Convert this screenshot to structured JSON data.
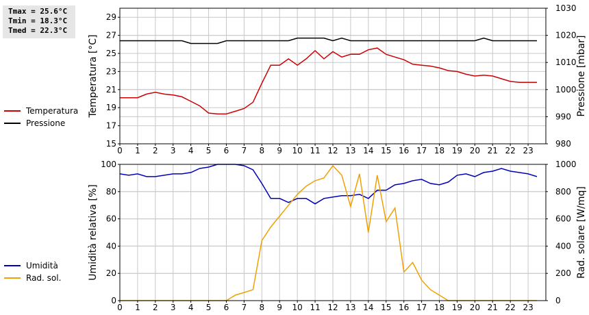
{
  "stats": {
    "tmax": "Tmax = 25.6°C",
    "tmin": "Tmin = 18.3°C",
    "tmed": "Tmed = 22.3°C"
  },
  "colors": {
    "temperatura": "#cc0000",
    "pressione": "#000000",
    "umidita": "#0000bb",
    "rad_sol": "#f0a000",
    "grid": "#c8c8c8"
  },
  "chart_data": [
    {
      "type": "line",
      "ylabel": "Temperatura [°C]",
      "y2label": "Pressione [mbar]",
      "xlim": [
        0,
        24
      ],
      "xticks": [
        0,
        1,
        2,
        3,
        4,
        5,
        6,
        7,
        8,
        9,
        10,
        11,
        12,
        13,
        14,
        15,
        16,
        17,
        18,
        19,
        20,
        21,
        22,
        23
      ],
      "ylim": [
        15,
        30
      ],
      "yticks": [
        15,
        17,
        19,
        21,
        23,
        25,
        27,
        29
      ],
      "y2lim": [
        980,
        1030
      ],
      "y2ticks": [
        980,
        990,
        1000,
        1010,
        1020,
        1030
      ],
      "grid": true,
      "legend": "left",
      "series": [
        {
          "name": "Temperatura",
          "axis": "left",
          "x": [
            0,
            0.5,
            1,
            1.5,
            2,
            2.5,
            3,
            3.5,
            4,
            4.5,
            5,
            5.5,
            6,
            6.5,
            7,
            7.5,
            8,
            8.5,
            9,
            9.5,
            10,
            10.5,
            11,
            11.5,
            12,
            12.5,
            13,
            13.5,
            14,
            14.5,
            15,
            15.5,
            16,
            16.5,
            17,
            17.5,
            18,
            18.5,
            19,
            19.5,
            20,
            20.5,
            21,
            21.5,
            22,
            22.5,
            23,
            23.5
          ],
          "values": [
            20.1,
            20.1,
            20.1,
            20.5,
            20.7,
            20.5,
            20.4,
            20.2,
            19.7,
            19.2,
            18.4,
            18.3,
            18.3,
            18.6,
            18.9,
            19.6,
            21.7,
            23.7,
            23.7,
            24.4,
            23.7,
            24.4,
            25.3,
            24.4,
            25.2,
            24.6,
            24.9,
            24.9,
            25.4,
            25.6,
            24.9,
            24.6,
            24.3,
            23.8,
            23.7,
            23.6,
            23.4,
            23.1,
            23.0,
            22.7,
            22.5,
            22.6,
            22.5,
            22.2,
            21.9,
            21.8,
            21.8,
            21.8
          ]
        },
        {
          "name": "Pressione",
          "axis": "right",
          "x": [
            0,
            0.5,
            1,
            1.5,
            2,
            2.5,
            3,
            3.5,
            4,
            4.5,
            5,
            5.5,
            6,
            6.5,
            7,
            7.5,
            8,
            8.5,
            9,
            9.5,
            10,
            10.5,
            11,
            11.5,
            12,
            12.5,
            13,
            13.5,
            14,
            14.5,
            15,
            15.5,
            16,
            16.5,
            17,
            17.5,
            18,
            18.5,
            19,
            19.5,
            20,
            20.5,
            21,
            21.5,
            22,
            22.5,
            23,
            23.5
          ],
          "values": [
            1018,
            1018,
            1018,
            1018,
            1018,
            1018,
            1018,
            1018,
            1017,
            1017,
            1017,
            1017,
            1018,
            1018,
            1018,
            1018,
            1018,
            1018,
            1018,
            1018,
            1019,
            1019,
            1019,
            1019,
            1018,
            1019,
            1018,
            1018,
            1018,
            1018,
            1018,
            1018,
            1018,
            1018,
            1018,
            1018,
            1018,
            1018,
            1018,
            1018,
            1018,
            1019,
            1018,
            1018,
            1018,
            1018,
            1018,
            1018
          ]
        }
      ]
    },
    {
      "type": "line",
      "ylabel": "Umidità relativa [%]",
      "y2label": "Rad. solare [W/mq]",
      "xlim": [
        0,
        24
      ],
      "xticks": [
        0,
        1,
        2,
        3,
        4,
        5,
        6,
        7,
        8,
        9,
        10,
        11,
        12,
        13,
        14,
        15,
        16,
        17,
        18,
        19,
        20,
        21,
        22,
        23
      ],
      "ylim": [
        0,
        100
      ],
      "yticks": [
        0,
        20,
        40,
        60,
        80,
        100
      ],
      "y2lim": [
        0,
        1000
      ],
      "y2ticks": [
        0,
        200,
        400,
        600,
        800,
        1000
      ],
      "grid": true,
      "legend": "left",
      "series": [
        {
          "name": "Umidità",
          "axis": "left",
          "x": [
            0,
            0.5,
            1,
            1.5,
            2,
            2.5,
            3,
            3.5,
            4,
            4.5,
            5,
            5.5,
            6,
            6.5,
            7,
            7.5,
            8,
            8.5,
            9,
            9.5,
            10,
            10.5,
            11,
            11.5,
            12,
            12.5,
            13,
            13.5,
            14,
            14.5,
            15,
            15.5,
            16,
            16.5,
            17,
            17.5,
            18,
            18.5,
            19,
            19.5,
            20,
            20.5,
            21,
            21.5,
            22,
            22.5,
            23,
            23.5
          ],
          "values": [
            93,
            92,
            93,
            91,
            91,
            92,
            93,
            93,
            94,
            97,
            98,
            100,
            100,
            100,
            99,
            96,
            86,
            75,
            75,
            72,
            75,
            75,
            71,
            75,
            76,
            77,
            77,
            78,
            75,
            81,
            81,
            85,
            86,
            88,
            89,
            86,
            85,
            87,
            92,
            93,
            91,
            94,
            95,
            97,
            95,
            94,
            93,
            91
          ]
        },
        {
          "name": "Rad. sol.",
          "axis": "right",
          "x": [
            0,
            0.5,
            1,
            1.5,
            2,
            2.5,
            3,
            3.5,
            4,
            4.5,
            5,
            5.5,
            6,
            6.5,
            7,
            7.5,
            8,
            8.5,
            9,
            9.5,
            10,
            10.5,
            11,
            11.5,
            12,
            12.5,
            13,
            13.5,
            14,
            14.5,
            15,
            15.5,
            16,
            16.5,
            17,
            17.5,
            18,
            18.5,
            19,
            19.5,
            20,
            20.5,
            21,
            21.5,
            22,
            22.5,
            23,
            23.5
          ],
          "values": [
            0,
            0,
            0,
            0,
            0,
            0,
            0,
            0,
            0,
            0,
            0,
            0,
            0,
            40,
            60,
            80,
            440,
            540,
            620,
            700,
            780,
            840,
            880,
            900,
            990,
            920,
            690,
            930,
            500,
            920,
            580,
            680,
            210,
            280,
            150,
            80,
            40,
            0,
            0,
            0,
            0,
            0,
            0,
            0,
            0,
            0,
            0,
            0
          ]
        }
      ]
    }
  ]
}
